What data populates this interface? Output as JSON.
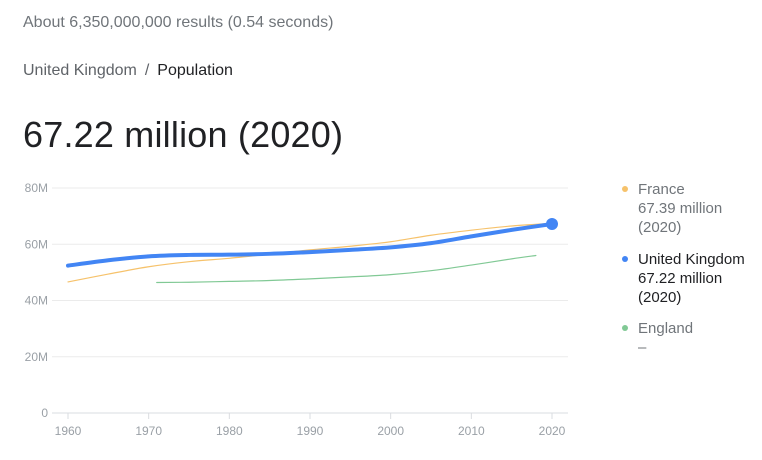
{
  "header": {
    "result_stats": "About 6,350,000,000 results (0.54 seconds)"
  },
  "breadcrumb": {
    "parent": "United Kingdom",
    "separator": "/",
    "current": "Population"
  },
  "headline": "67.22 million (2020)",
  "colors": {
    "france": "#f6c26b",
    "uk": "#4285f4",
    "england": "#81c995"
  },
  "legend": [
    {
      "name": "France",
      "value_line1": "67.39 million",
      "value_line2": "(2020)",
      "color": "#f6c26b",
      "text_color": "#70757a"
    },
    {
      "name": "United Kingdom",
      "value_line1": "67.22 million",
      "value_line2": "(2020)",
      "color": "#4285f4",
      "text_color": "#202124"
    },
    {
      "name": "England",
      "value_line1": "–",
      "value_line2": "",
      "color": "#81c995",
      "text_color": "#70757a"
    }
  ],
  "chart_data": {
    "type": "line",
    "title": "",
    "xlabel": "",
    "ylabel": "",
    "xlim": [
      1960,
      2020
    ],
    "ylim": [
      0,
      80
    ],
    "y_ticks": [
      0,
      20,
      40,
      60,
      80
    ],
    "y_tick_labels": [
      "0",
      "20M",
      "40M",
      "60M",
      "80M"
    ],
    "x_ticks": [
      1960,
      1970,
      1980,
      1990,
      2000,
      2010,
      2020
    ],
    "x_tick_labels": [
      "1960",
      "1970",
      "1980",
      "1990",
      "2000",
      "2010",
      "2020"
    ],
    "grid": true,
    "series": [
      {
        "name": "France",
        "x": [
          1960,
          1965,
          1970,
          1975,
          1980,
          1985,
          1990,
          1995,
          2000,
          2005,
          2010,
          2015,
          2020
        ],
        "values": [
          46.6,
          49.4,
          52.0,
          53.8,
          55.0,
          56.5,
          58.0,
          59.3,
          60.9,
          63.2,
          65.0,
          66.5,
          67.4
        ]
      },
      {
        "name": "United Kingdom",
        "x": [
          1960,
          1965,
          1970,
          1975,
          1980,
          1985,
          1990,
          1995,
          2000,
          2005,
          2010,
          2015,
          2020
        ],
        "values": [
          52.4,
          54.3,
          55.7,
          56.2,
          56.3,
          56.6,
          57.2,
          58.0,
          58.9,
          60.4,
          62.8,
          65.1,
          67.2
        ]
      },
      {
        "name": "England",
        "x": [
          1971,
          1975,
          1980,
          1985,
          1990,
          1995,
          2000,
          2005,
          2010,
          2015,
          2018
        ],
        "values": [
          46.4,
          46.5,
          46.8,
          47.1,
          47.7,
          48.4,
          49.2,
          50.6,
          52.6,
          54.8,
          56.0
        ]
      }
    ]
  }
}
